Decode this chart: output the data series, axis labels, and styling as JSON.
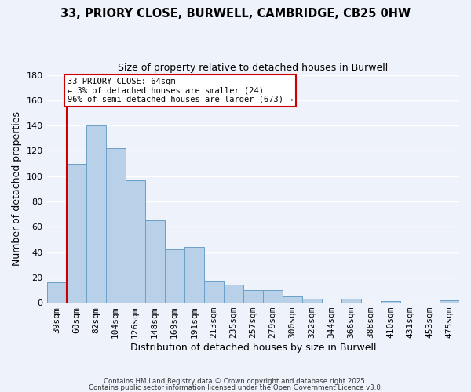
{
  "title": "33, PRIORY CLOSE, BURWELL, CAMBRIDGE, CB25 0HW",
  "subtitle": "Size of property relative to detached houses in Burwell",
  "xlabel": "Distribution of detached houses by size in Burwell",
  "ylabel": "Number of detached properties",
  "bar_labels": [
    "39sqm",
    "60sqm",
    "82sqm",
    "104sqm",
    "126sqm",
    "148sqm",
    "169sqm",
    "191sqm",
    "213sqm",
    "235sqm",
    "257sqm",
    "279sqm",
    "300sqm",
    "322sqm",
    "344sqm",
    "366sqm",
    "388sqm",
    "410sqm",
    "431sqm",
    "453sqm",
    "475sqm"
  ],
  "bar_values": [
    16,
    110,
    140,
    122,
    97,
    65,
    42,
    44,
    17,
    14,
    10,
    10,
    5,
    3,
    0,
    3,
    0,
    1,
    0,
    0,
    2
  ],
  "bar_color": "#b8d0e8",
  "bar_edge_color": "#6aa0c8",
  "ylim": [
    0,
    180
  ],
  "yticks": [
    0,
    20,
    40,
    60,
    80,
    100,
    120,
    140,
    160,
    180
  ],
  "vline_color": "#cc0000",
  "annotation_text": "33 PRIORY CLOSE: 64sqm\n← 3% of detached houses are smaller (24)\n96% of semi-detached houses are larger (673) →",
  "annotation_box_color": "#ffffff",
  "annotation_box_edge": "#cc0000",
  "footer_line1": "Contains HM Land Registry data © Crown copyright and database right 2025.",
  "footer_line2": "Contains public sector information licensed under the Open Government Licence v3.0.",
  "background_color": "#eef2fa",
  "grid_color": "#d8e0f0"
}
